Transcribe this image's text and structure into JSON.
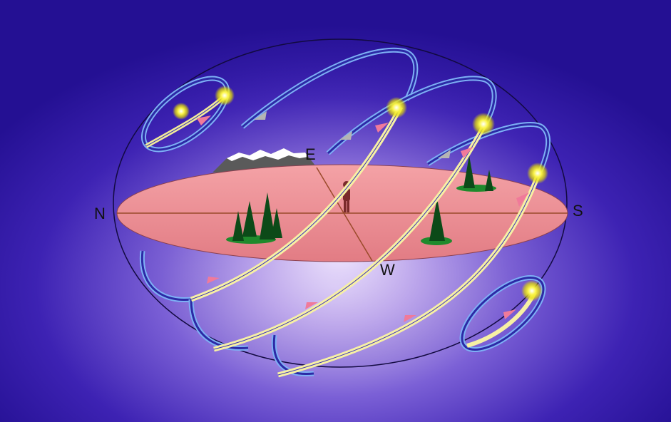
{
  "labels": {
    "north": "N",
    "south": "S",
    "east": "E",
    "west": "W"
  },
  "colors": {
    "background_edge": "#241093",
    "background_center": "#f1e8fb",
    "horizon_plane": "#ee8c92",
    "sun_path_fill": "#fbf4a6",
    "sun_path_halo": "#79aaf3",
    "sun": "#f4f00c",
    "arrow_visible": "#f07a9a",
    "arrow_hidden": "#a8a8a8",
    "tree": "#0c4a18",
    "mountain": "#555555",
    "snow": "#ffffff",
    "observer": "#7a2a2a"
  },
  "icons": [
    "sun-icon",
    "direction-arrow-icon",
    "tree-icon",
    "mountain-icon",
    "observer-figure-icon"
  ]
}
